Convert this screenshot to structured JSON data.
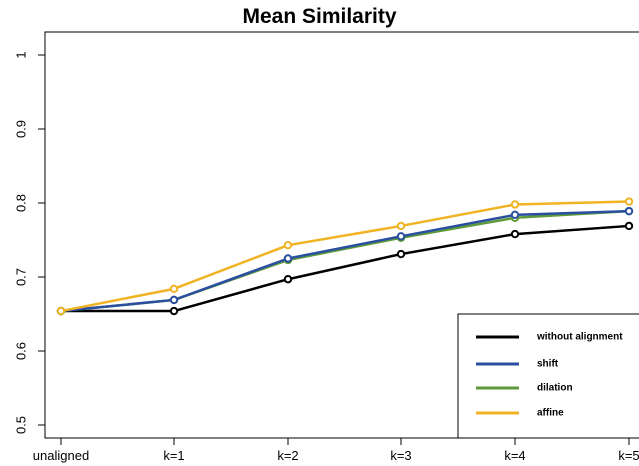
{
  "chart_data": {
    "type": "line",
    "title": "Mean Similarity",
    "xlabel": "",
    "ylabel": "",
    "categories": [
      "unaligned",
      "k=1",
      "k=2",
      "k=3",
      "k=4",
      "k=5"
    ],
    "ylim": [
      0.48,
      1.02
    ],
    "yticks": [
      0.5,
      0.6,
      0.7,
      0.8,
      0.9,
      1
    ],
    "ytick_labels": [
      "0.5",
      "0.6",
      "0.7",
      "0.8",
      "0.9",
      "1"
    ],
    "series": [
      {
        "name": "without alignment",
        "color": "#000000",
        "values": [
          0.654,
          0.654,
          0.697,
          0.731,
          0.758,
          0.769
        ]
      },
      {
        "name": "shift",
        "color": "#2b4fa0",
        "values": [
          0.654,
          0.669,
          0.725,
          0.755,
          0.784,
          0.789
        ]
      },
      {
        "name": "dilation",
        "color": "#5e9a3a",
        "values": [
          0.654,
          0.669,
          0.723,
          0.753,
          0.78,
          0.789
        ]
      },
      {
        "name": "affine",
        "color": "#f0b323",
        "values": [
          0.654,
          0.684,
          0.743,
          0.769,
          0.798,
          0.802
        ]
      }
    ],
    "grid": false,
    "legend_position": "bottom-right"
  }
}
